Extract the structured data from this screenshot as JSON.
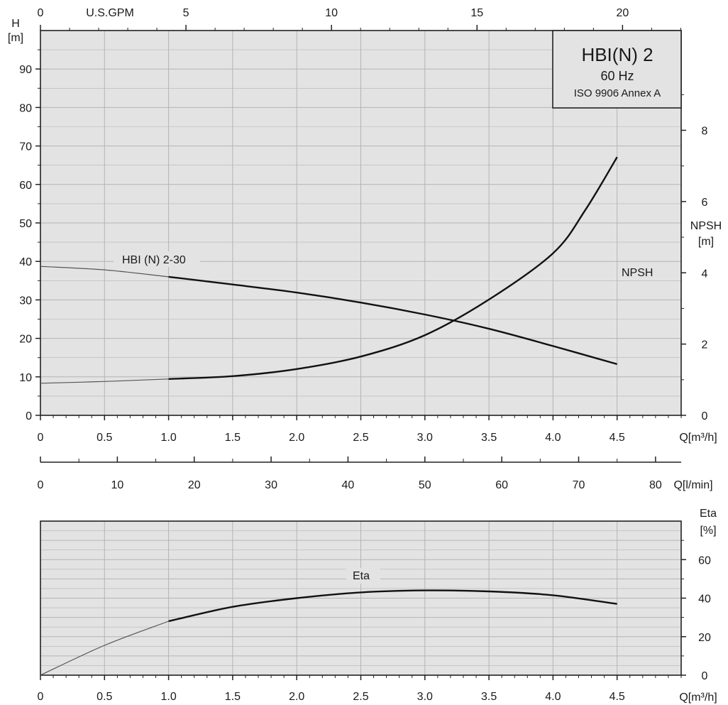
{
  "legend": {
    "model": "HBI(N) 2",
    "frequency": "60 Hz",
    "standard": "ISO 9906 Annex A"
  },
  "axes": {
    "top_label": "U.S.GPM",
    "top_ticks": [
      "0",
      "5",
      "10",
      "15",
      "20"
    ],
    "head_label_line1": "H",
    "head_label_line2": "[m]",
    "head_ticks": [
      "0",
      "10",
      "20",
      "30",
      "40",
      "50",
      "60",
      "70",
      "80",
      "90"
    ],
    "npsh_label_line1": "NPSH",
    "npsh_label_line2": "[m]",
    "npsh_ticks": [
      "0",
      "2",
      "4",
      "6",
      "8"
    ],
    "q_ticks": [
      "0",
      "0.5",
      "1.0",
      "1.5",
      "2.0",
      "2.5",
      "3.0",
      "3.5",
      "4.0",
      "4.5"
    ],
    "q_unit": "Q[m³/h]",
    "lmin_ticks": [
      "0",
      "10",
      "20",
      "30",
      "40",
      "50",
      "60",
      "70",
      "80"
    ],
    "lmin_unit": "Q[l/min]",
    "eta_label_line1": "Eta",
    "eta_label_line2": "[%]",
    "eta_ticks": [
      "0",
      "20",
      "40",
      "60"
    ]
  },
  "colors": {
    "plot_bg": "#e3e3e3",
    "grid": "#b4b4b4",
    "curve": "#111111",
    "curve_ext": "#555555"
  },
  "chart_data": [
    {
      "type": "line",
      "x_unit": "Q [m3/h]",
      "xlim": [
        0,
        5
      ],
      "ylim_head": [
        0,
        100
      ],
      "ylim_npsh": [
        0,
        10.8
      ],
      "series": [
        {
          "name": "HBI (N) 2-30",
          "axis": "head",
          "x": [
            0,
            0.5,
            1.0,
            1.5,
            2.0,
            2.5,
            3.0,
            3.5,
            4.0,
            4.5
          ],
          "y": [
            38.7,
            37.8,
            36.0,
            34.0,
            31.9,
            29.3,
            26.2,
            22.5,
            18.0,
            13.3
          ],
          "extrapolated_below_x": 1.0
        },
        {
          "name": "NPSH",
          "axis": "npsh",
          "x": [
            0,
            0.5,
            1.0,
            1.5,
            2.0,
            2.5,
            3.0,
            3.5,
            4.0,
            4.25,
            4.5
          ],
          "y": [
            0.9,
            0.95,
            1.02,
            1.1,
            1.3,
            1.65,
            2.25,
            3.25,
            4.55,
            5.75,
            7.25
          ],
          "extrapolated_below_x": 1.0
        }
      ],
      "grid": true
    },
    {
      "type": "line",
      "x_unit": "Q [m3/h]",
      "xlim": [
        0,
        5
      ],
      "ylim": [
        0,
        80
      ],
      "series": [
        {
          "name": "Eta",
          "x": [
            0,
            0.5,
            1.0,
            1.5,
            2.0,
            2.5,
            3.0,
            3.5,
            4.0,
            4.5
          ],
          "y": [
            0,
            15.5,
            28,
            35.5,
            40,
            43,
            44,
            43.5,
            41.5,
            37
          ],
          "extrapolated_below_x": 1.0
        }
      ],
      "grid": true
    }
  ]
}
